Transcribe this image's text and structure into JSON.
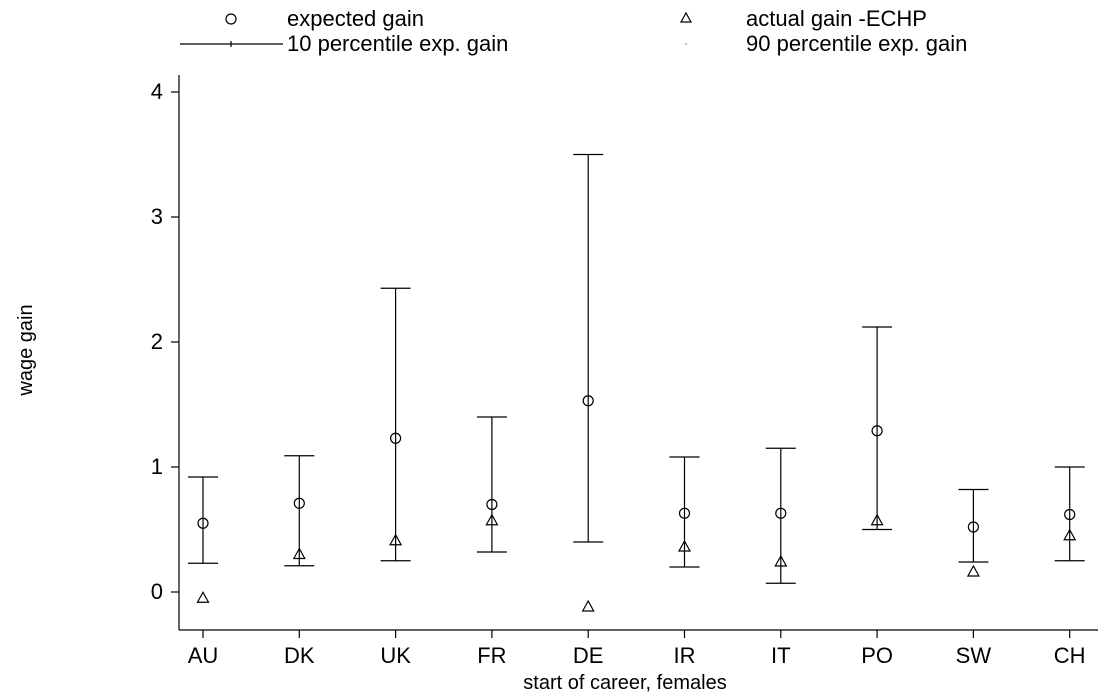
{
  "chart_data": {
    "type": "scatter",
    "xlabel": "start of career, females",
    "ylabel": "wage gain",
    "ylim": [
      -0.25,
      4.2
    ],
    "yticks": [
      0,
      1,
      2,
      3,
      4
    ],
    "categories": [
      "AU",
      "DK",
      "UK",
      "FR",
      "DE",
      "IR",
      "IT",
      "PO",
      "SW",
      "CH"
    ],
    "series": [
      {
        "name": "expected gain",
        "marker": "circle",
        "values": [
          0.55,
          0.71,
          1.23,
          0.7,
          1.53,
          0.63,
          0.63,
          1.29,
          0.52,
          0.62
        ]
      },
      {
        "name": "actual gain -ECHP",
        "marker": "triangle",
        "values": [
          -0.05,
          0.3,
          0.41,
          0.57,
          -0.12,
          0.36,
          0.24,
          0.57,
          0.16,
          0.45
        ]
      },
      {
        "name": "10 percentile exp. gain",
        "marker": "error-bar-low",
        "values": [
          0.23,
          0.21,
          0.25,
          0.32,
          0.4,
          0.2,
          0.07,
          0.5,
          0.24,
          0.25
        ]
      },
      {
        "name": "90 percentile exp. gain",
        "marker": "error-bar-high",
        "values": [
          0.92,
          1.09,
          2.43,
          1.4,
          3.5,
          1.08,
          1.15,
          2.12,
          0.82,
          1.0
        ]
      }
    ],
    "legend": {
      "placement": "top"
    },
    "grid": false
  }
}
